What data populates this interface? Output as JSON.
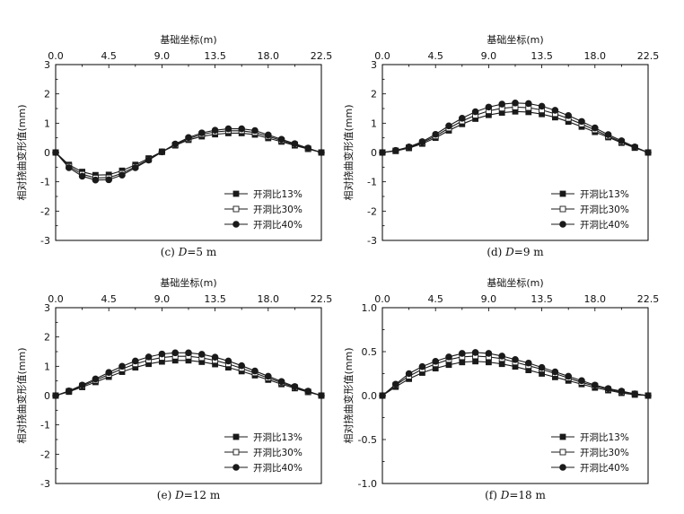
{
  "chart_data": [
    {
      "type": "line",
      "caption_prefix": "(c) ",
      "caption_var": "D",
      "caption_value": "=5 m",
      "xlabel": "基础坐标(m)",
      "ylabel": "相对挠曲变形值(mm)",
      "xlim": [
        0,
        22.5
      ],
      "ylim": [
        -3,
        3
      ],
      "xticks": [
        "0.0",
        "4.5",
        "9.0",
        "13.5",
        "18.0",
        "22.5"
      ],
      "yticks": [
        "3",
        "2",
        "1",
        "0",
        "-1",
        "-2",
        "-3"
      ],
      "ytick_values": [
        3,
        2,
        1,
        0,
        -1,
        -2,
        -3
      ],
      "legend_position": "lower-right",
      "x": [
        0,
        1.125,
        2.25,
        3.375,
        4.5,
        5.625,
        6.75,
        7.875,
        9,
        10.125,
        11.25,
        12.375,
        13.5,
        14.625,
        15.75,
        16.875,
        18,
        19.125,
        20.25,
        21.375,
        22.5
      ],
      "series": [
        {
          "name": "开洞比13%",
          "marker": "square-filled",
          "values": [
            0,
            -0.42,
            -0.66,
            -0.77,
            -0.76,
            -0.62,
            -0.42,
            -0.2,
            0.03,
            0.24,
            0.43,
            0.55,
            0.62,
            0.66,
            0.66,
            0.61,
            0.49,
            0.37,
            0.24,
            0.12,
            0
          ]
        },
        {
          "name": "开洞比30%",
          "marker": "square-open",
          "values": [
            0,
            -0.47,
            -0.74,
            -0.87,
            -0.86,
            -0.71,
            -0.48,
            -0.24,
            0.02,
            0.26,
            0.47,
            0.62,
            0.7,
            0.74,
            0.74,
            0.68,
            0.55,
            0.41,
            0.27,
            0.13,
            0
          ]
        },
        {
          "name": "开洞比40%",
          "marker": "circle-filled",
          "values": [
            0,
            -0.52,
            -0.81,
            -0.94,
            -0.93,
            -0.77,
            -0.52,
            -0.26,
            0.02,
            0.29,
            0.51,
            0.67,
            0.76,
            0.81,
            0.81,
            0.75,
            0.6,
            0.45,
            0.3,
            0.15,
            0
          ]
        }
      ]
    },
    {
      "type": "line",
      "caption_prefix": "(d) ",
      "caption_var": "D",
      "caption_value": "=9 m",
      "xlabel": "基础坐标(m)",
      "ylabel": "相对挠曲变形值(mm)",
      "xlim": [
        0,
        22.5
      ],
      "ylim": [
        -3,
        3
      ],
      "xticks": [
        "0.0",
        "4.5",
        "9.0",
        "13.5",
        "18.0",
        "22.5"
      ],
      "yticks": [
        "3",
        "2",
        "1",
        "0",
        "-1",
        "-2",
        "-3"
      ],
      "ytick_values": [
        3,
        2,
        1,
        0,
        -1,
        -2,
        -3
      ],
      "legend_position": "lower-right",
      "x": [
        0,
        1.125,
        2.25,
        3.375,
        4.5,
        5.625,
        6.75,
        7.875,
        9,
        10.125,
        11.25,
        12.375,
        13.5,
        14.625,
        15.75,
        16.875,
        18,
        19.125,
        20.25,
        21.375,
        22.5
      ],
      "series": [
        {
          "name": "开洞比13%",
          "marker": "square-filled",
          "values": [
            0,
            0.05,
            0.15,
            0.3,
            0.5,
            0.75,
            0.97,
            1.15,
            1.28,
            1.36,
            1.4,
            1.38,
            1.31,
            1.2,
            1.05,
            0.88,
            0.7,
            0.52,
            0.33,
            0.16,
            0
          ]
        },
        {
          "name": "开洞比30%",
          "marker": "square-open",
          "values": [
            0,
            0.06,
            0.17,
            0.34,
            0.56,
            0.83,
            1.07,
            1.27,
            1.42,
            1.51,
            1.55,
            1.53,
            1.45,
            1.32,
            1.16,
            0.97,
            0.77,
            0.56,
            0.36,
            0.17,
            0
          ]
        },
        {
          "name": "开洞比40%",
          "marker": "circle-filled",
          "values": [
            0,
            0.07,
            0.19,
            0.37,
            0.62,
            0.91,
            1.17,
            1.39,
            1.55,
            1.65,
            1.69,
            1.67,
            1.58,
            1.44,
            1.26,
            1.06,
            0.84,
            0.61,
            0.4,
            0.19,
            0
          ]
        }
      ]
    },
    {
      "type": "line",
      "caption_prefix": "(e) ",
      "caption_var": "D",
      "caption_value": "=12 m",
      "xlabel": "基础坐标(m)",
      "ylabel": "相对挠曲变形值(mm)",
      "xlim": [
        0,
        22.5
      ],
      "ylim": [
        -3,
        3
      ],
      "xticks": [
        "0.0",
        "4.5",
        "9.0",
        "13.5",
        "18.0",
        "22.5"
      ],
      "yticks": [
        "3",
        "2",
        "1",
        "0",
        "-1",
        "-2",
        "-3"
      ],
      "ytick_values": [
        3,
        2,
        1,
        0,
        -1,
        -2,
        -3
      ],
      "legend_position": "lower-right",
      "x": [
        0,
        1.125,
        2.25,
        3.375,
        4.5,
        5.625,
        6.75,
        7.875,
        9,
        10.125,
        11.25,
        12.375,
        13.5,
        14.625,
        15.75,
        16.875,
        18,
        19.125,
        20.25,
        21.375,
        22.5
      ],
      "series": [
        {
          "name": "开洞比13%",
          "marker": "square-filled",
          "values": [
            0,
            0.13,
            0.29,
            0.46,
            0.64,
            0.81,
            0.96,
            1.08,
            1.16,
            1.2,
            1.2,
            1.15,
            1.07,
            0.96,
            0.83,
            0.69,
            0.54,
            0.39,
            0.25,
            0.12,
            0
          ]
        },
        {
          "name": "开洞比30%",
          "marker": "square-open",
          "values": [
            0,
            0.15,
            0.33,
            0.52,
            0.72,
            0.91,
            1.08,
            1.21,
            1.3,
            1.34,
            1.34,
            1.29,
            1.2,
            1.08,
            0.93,
            0.77,
            0.6,
            0.44,
            0.28,
            0.13,
            0
          ]
        },
        {
          "name": "开洞比40%",
          "marker": "circle-filled",
          "values": [
            0,
            0.16,
            0.36,
            0.57,
            0.79,
            1.0,
            1.18,
            1.32,
            1.42,
            1.46,
            1.46,
            1.41,
            1.31,
            1.18,
            1.02,
            0.84,
            0.66,
            0.48,
            0.31,
            0.15,
            0
          ]
        }
      ]
    },
    {
      "type": "line",
      "caption_prefix": "(f) ",
      "caption_var": "D",
      "caption_value": "=18 m",
      "xlabel": "基础坐标(m)",
      "ylabel": "相对挠曲变形值(mm)",
      "xlim": [
        0,
        22.5
      ],
      "ylim": [
        -1,
        1
      ],
      "xticks": [
        "0.0",
        "4.5",
        "9.0",
        "13.5",
        "18.0",
        "22.5"
      ],
      "yticks": [
        "1.0",
        "0.5",
        "0.0",
        "-0.5",
        "-1.0"
      ],
      "ytick_values": [
        1,
        0.5,
        0,
        -0.5,
        -1
      ],
      "legend_position": "lower-right",
      "x": [
        0,
        1.125,
        2.25,
        3.375,
        4.5,
        5.625,
        6.75,
        7.875,
        9,
        10.125,
        11.25,
        12.375,
        13.5,
        14.625,
        15.75,
        16.875,
        18,
        19.125,
        20.25,
        21.375,
        22.5
      ],
      "series": [
        {
          "name": "开洞比13%",
          "marker": "square-filled",
          "values": [
            0,
            0.1,
            0.19,
            0.26,
            0.31,
            0.35,
            0.38,
            0.39,
            0.38,
            0.36,
            0.33,
            0.29,
            0.25,
            0.21,
            0.17,
            0.13,
            0.09,
            0.06,
            0.03,
            0.01,
            0
          ]
        },
        {
          "name": "开洞比30%",
          "marker": "square-open",
          "values": [
            0,
            0.12,
            0.22,
            0.3,
            0.36,
            0.41,
            0.44,
            0.45,
            0.44,
            0.42,
            0.38,
            0.34,
            0.3,
            0.25,
            0.2,
            0.15,
            0.11,
            0.07,
            0.04,
            0.02,
            0
          ]
        },
        {
          "name": "开洞比40%",
          "marker": "circle-filled",
          "values": [
            0,
            0.13,
            0.25,
            0.33,
            0.39,
            0.44,
            0.48,
            0.49,
            0.48,
            0.45,
            0.41,
            0.37,
            0.32,
            0.27,
            0.22,
            0.17,
            0.12,
            0.08,
            0.05,
            0.02,
            0
          ]
        }
      ]
    }
  ],
  "colors": {
    "axis": "#000000",
    "line": "#1a1a1a",
    "marker_fill": "#1a1a1a",
    "open_fill": "#ffffff",
    "background": "#ffffff"
  }
}
